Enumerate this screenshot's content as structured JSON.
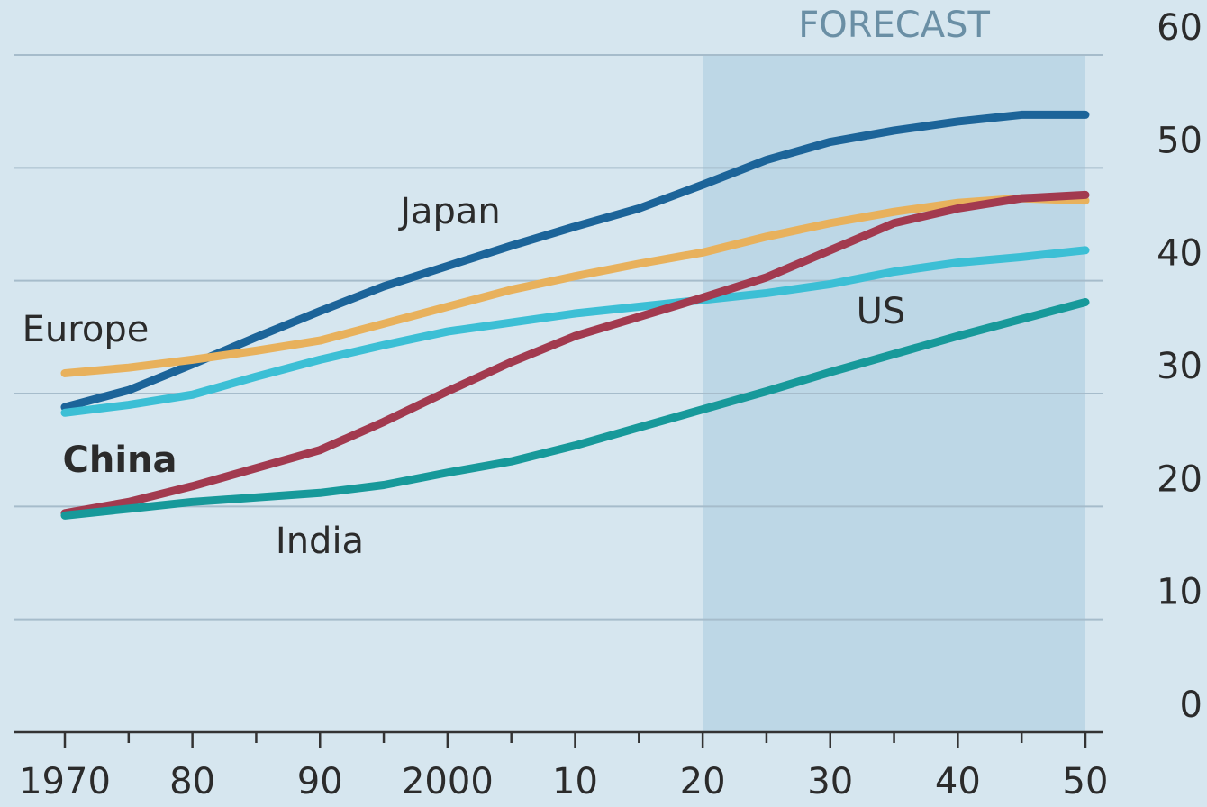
{
  "chart_data": {
    "type": "line",
    "x": [
      1970,
      1975,
      1980,
      1985,
      1990,
      1995,
      2000,
      2005,
      2010,
      2015,
      2020,
      2025,
      2030,
      2035,
      2040,
      2045,
      2050
    ],
    "series": [
      {
        "name": "Japan",
        "color": "#1c6499",
        "values": [
          28.8,
          30.3,
          32.6,
          35.0,
          37.3,
          39.5,
          41.3,
          43.1,
          44.8,
          46.4,
          48.5,
          50.7,
          52.3,
          53.3,
          54.1,
          54.7,
          54.7
        ]
      },
      {
        "name": "Europe",
        "color": "#e8b15c",
        "values": [
          31.8,
          32.3,
          33.0,
          33.8,
          34.7,
          36.2,
          37.7,
          39.2,
          40.4,
          41.5,
          42.5,
          43.9,
          45.1,
          46.1,
          46.9,
          47.3,
          47.1
        ]
      },
      {
        "name": "US",
        "color": "#3cbfd5",
        "values": [
          28.3,
          29.0,
          29.9,
          31.5,
          33.0,
          34.3,
          35.5,
          36.3,
          37.1,
          37.7,
          38.3,
          38.9,
          39.7,
          40.8,
          41.6,
          42.1,
          42.7
        ]
      },
      {
        "name": "China",
        "color": "#a23a4f",
        "values": [
          19.4,
          20.4,
          21.8,
          23.4,
          25.0,
          27.5,
          30.2,
          32.8,
          35.1,
          36.8,
          38.5,
          40.3,
          42.7,
          45.1,
          46.4,
          47.3,
          47.6
        ]
      },
      {
        "name": "India",
        "color": "#17999a",
        "values": [
          19.2,
          19.8,
          20.4,
          20.8,
          21.2,
          21.9,
          23.0,
          24.0,
          25.4,
          27.0,
          28.6,
          30.2,
          31.9,
          33.5,
          35.1,
          36.6,
          38.1
        ]
      }
    ],
    "forecast": {
      "label": "FORECAST",
      "start": 2020,
      "end": 2050
    },
    "xlim": [
      1970,
      2050
    ],
    "xticks": [
      1970,
      {
        "value": 1980,
        "label": "80"
      },
      {
        "value": 1990,
        "label": "90"
      },
      2000,
      {
        "value": 2010,
        "label": "10"
      },
      {
        "value": 2020,
        "label": "20"
      },
      {
        "value": 2030,
        "label": "30"
      },
      {
        "value": 2040,
        "label": "40"
      },
      {
        "value": 2050,
        "label": "50"
      }
    ],
    "xminorticks": [
      1975,
      1985,
      1995,
      2005,
      2015,
      2025,
      2035,
      2045
    ],
    "ylim": [
      0,
      60
    ],
    "yticks": [
      0,
      10,
      20,
      30,
      40,
      50,
      60
    ],
    "grid": true
  }
}
